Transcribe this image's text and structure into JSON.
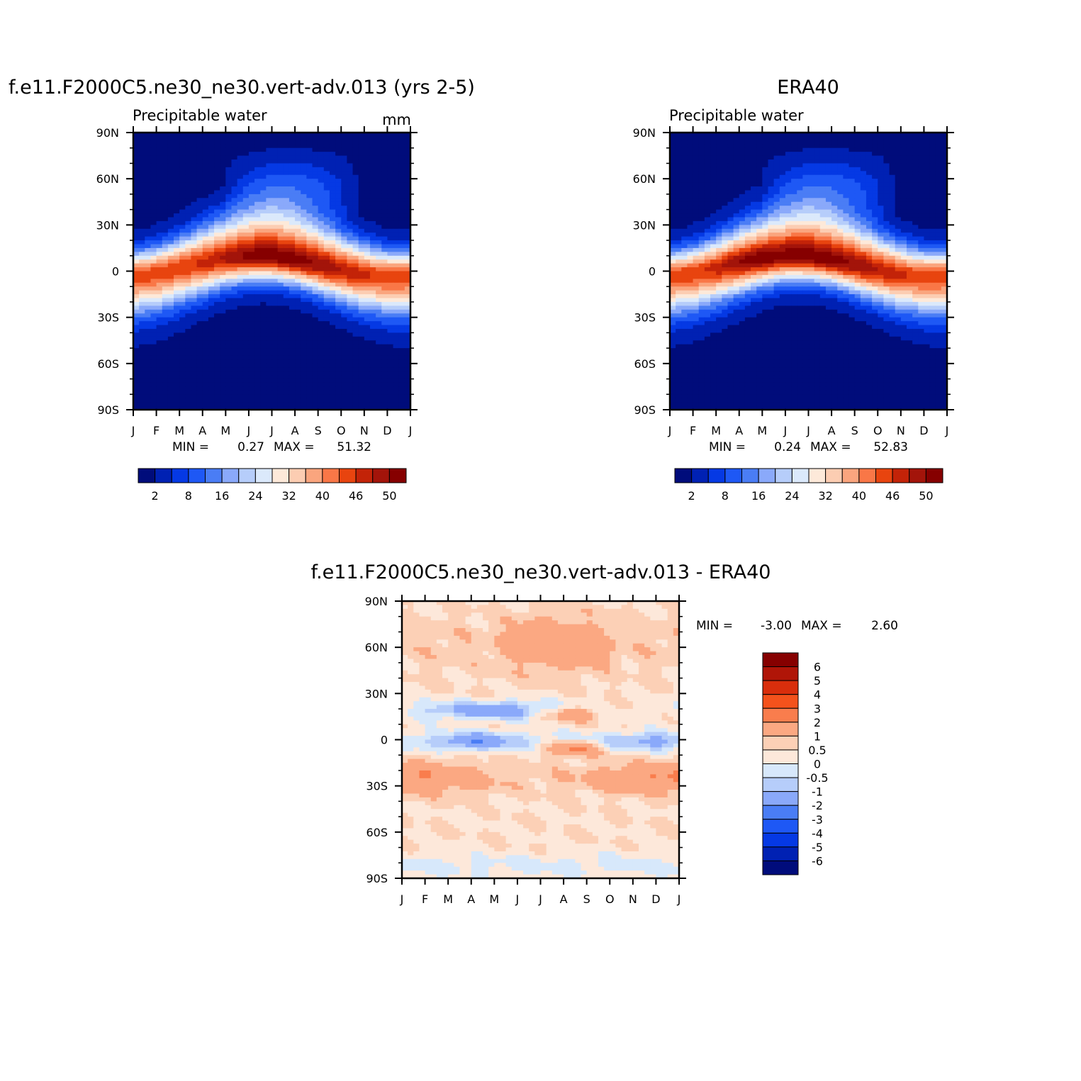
{
  "chart_data": [
    {
      "type": "heatmap",
      "title": "f.e11.F2000C5.ne30_ne30.vert-adv.013 (yrs 2-5)",
      "subtitle": "Precipitable water",
      "units": "mm",
      "x_ticks": [
        "J",
        "F",
        "M",
        "A",
        "M",
        "J",
        "J",
        "A",
        "S",
        "O",
        "N",
        "D",
        "J"
      ],
      "y_ticks": [
        "90N",
        "60N",
        "30N",
        "0",
        "30S",
        "60S",
        "90S"
      ],
      "y_range": [
        -90,
        90
      ],
      "min_label": "MIN =",
      "min_value": "0.27",
      "max_label": "MAX =",
      "max_value": "51.32",
      "colorbar_labels": [
        "2",
        "8",
        "16",
        "24",
        "32",
        "40",
        "46",
        "50"
      ],
      "colorbar_colors": [
        "#000c7b",
        "#0021b3",
        "#0539e4",
        "#1e58f5",
        "#4a7df5",
        "#8aa9fa",
        "#b6cdfa",
        "#dbe9fb",
        "#fde9d9",
        "#fccdb2",
        "#faa57e",
        "#f97747",
        "#e8440f",
        "#c32308",
        "#a3140a",
        "#860000"
      ],
      "data_scale_max": 52,
      "peak_values": {
        "jan": 48,
        "jul": 51.32,
        "aug": 51,
        "dec": 48
      },
      "peak_latitude": {
        "jan": -4,
        "apr": -3,
        "jul": 10,
        "oct": 8,
        "dec": 0
      }
    },
    {
      "type": "heatmap",
      "title": "ERA40",
      "subtitle": "Precipitable water",
      "x_ticks": [
        "J",
        "F",
        "M",
        "A",
        "M",
        "J",
        "J",
        "A",
        "S",
        "O",
        "N",
        "D",
        "J"
      ],
      "y_ticks": [
        "90N",
        "60N",
        "30N",
        "0",
        "30S",
        "60S",
        "90S"
      ],
      "y_range": [
        -90,
        90
      ],
      "min_label": "MIN =",
      "min_value": "0.24",
      "max_label": "MAX =",
      "max_value": "52.83",
      "colorbar_labels": [
        "2",
        "8",
        "16",
        "24",
        "32",
        "40",
        "46",
        "50"
      ],
      "colorbar_colors": [
        "#000c7b",
        "#0021b3",
        "#0539e4",
        "#1e58f5",
        "#4a7df5",
        "#8aa9fa",
        "#b6cdfa",
        "#dbe9fb",
        "#fde9d9",
        "#fccdb2",
        "#faa57e",
        "#f97747",
        "#e8440f",
        "#c32308",
        "#a3140a",
        "#860000"
      ],
      "data_scale_max": 52,
      "peak_values": {
        "jan": 47,
        "apr": 52.83,
        "jul": 52,
        "dec": 47
      },
      "peak_latitude": {
        "jan": -3,
        "apr": 2,
        "jul": 10,
        "oct": 7,
        "dec": 0
      }
    },
    {
      "type": "heatmap",
      "title": "f.e11.F2000C5.ne30_ne30.vert-adv.013 - ERA40",
      "x_ticks": [
        "J",
        "F",
        "M",
        "A",
        "M",
        "J",
        "J",
        "A",
        "S",
        "O",
        "N",
        "D",
        "J"
      ],
      "y_ticks": [
        "90N",
        "60N",
        "30N",
        "0",
        "30S",
        "60S",
        "90S"
      ],
      "y_range": [
        -90,
        90
      ],
      "min_label": "MIN =",
      "min_value": "-3.00",
      "max_label": "MAX =",
      "max_value": "2.60",
      "colorbar_labels": [
        "6",
        "5",
        "4",
        "3",
        "2",
        "1",
        "0.5",
        "0",
        "-0.5",
        "-1",
        "-2",
        "-3",
        "-4",
        "-5",
        "-6"
      ],
      "colorbar_colors": [
        "#860000",
        "#b01508",
        "#d92e0c",
        "#f4521c",
        "#f97d4d",
        "#fba882",
        "#fcd0b6",
        "#fde8da",
        "#d7e8fb",
        "#b6cdfa",
        "#8aa9fa",
        "#4a7df5",
        "#1e58f5",
        "#0539e4",
        "#0021b3",
        "#000c7b"
      ],
      "diff_levels": [
        -6,
        -5,
        -4,
        -3,
        -2,
        -1,
        -0.5,
        0,
        0.5,
        1,
        2,
        3,
        4,
        5,
        6
      ]
    }
  ]
}
